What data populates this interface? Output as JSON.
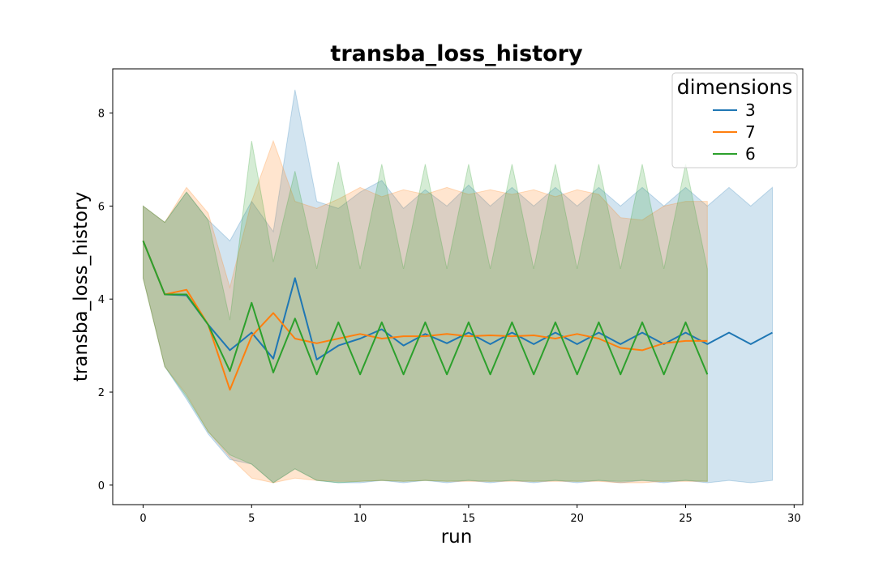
{
  "chart_data": {
    "type": "line",
    "title": "transba_loss_history",
    "xlabel": "run",
    "ylabel": "transba_loss_history",
    "xlim": [
      -1.4,
      30.4
    ],
    "ylim": [
      -0.42,
      8.95
    ],
    "xticks": [
      0,
      5,
      10,
      15,
      20,
      25,
      30
    ],
    "yticks": [
      0,
      2,
      4,
      6,
      8
    ],
    "grid": false,
    "legend": {
      "title": "dimensions",
      "placement": "top-right"
    },
    "series": [
      {
        "name": "3",
        "color": "#1f77b4",
        "x": [
          0,
          1,
          2,
          3,
          4,
          5,
          6,
          7,
          8,
          9,
          10,
          11,
          12,
          13,
          14,
          15,
          16,
          17,
          18,
          19,
          20,
          21,
          22,
          23,
          24,
          25,
          26,
          27,
          28,
          29
        ],
        "y": [
          5.25,
          4.1,
          4.08,
          3.45,
          2.9,
          3.28,
          2.72,
          4.45,
          2.7,
          3.0,
          3.15,
          3.35,
          3.0,
          3.25,
          3.05,
          3.28,
          3.03,
          3.28,
          3.03,
          3.28,
          3.03,
          3.28,
          3.03,
          3.28,
          3.03,
          3.28,
          3.03,
          3.28,
          3.03,
          3.28
        ],
        "upper": [
          6.0,
          5.65,
          6.3,
          5.7,
          5.25,
          6.1,
          5.45,
          8.5,
          6.1,
          5.95,
          6.3,
          6.55,
          5.95,
          6.35,
          6.0,
          6.45,
          6.0,
          6.4,
          6.0,
          6.4,
          6.0,
          6.4,
          6.0,
          6.4,
          6.0,
          6.4,
          6.0,
          6.4,
          6.0,
          6.4
        ],
        "lower": [
          4.45,
          2.55,
          1.85,
          1.1,
          0.55,
          0.45,
          0.05,
          0.35,
          0.1,
          0.05,
          0.05,
          0.1,
          0.05,
          0.1,
          0.05,
          0.1,
          0.05,
          0.1,
          0.05,
          0.1,
          0.05,
          0.1,
          0.05,
          0.1,
          0.05,
          0.1,
          0.05,
          0.1,
          0.05,
          0.1
        ]
      },
      {
        "name": "7",
        "color": "#ff7f0e",
        "x": [
          0,
          1,
          2,
          3,
          4,
          5,
          6,
          7,
          8,
          9,
          10,
          11,
          12,
          13,
          14,
          15,
          16,
          17,
          18,
          19,
          20,
          21,
          22,
          23,
          24,
          25,
          26
        ],
        "y": [
          5.25,
          4.1,
          4.2,
          3.45,
          2.05,
          3.2,
          3.7,
          3.15,
          3.05,
          3.15,
          3.25,
          3.15,
          3.2,
          3.2,
          3.25,
          3.2,
          3.22,
          3.2,
          3.22,
          3.15,
          3.25,
          3.15,
          2.95,
          2.9,
          3.05,
          3.1,
          3.1
        ],
        "upper": [
          6.0,
          5.65,
          6.4,
          5.85,
          4.25,
          6.1,
          7.4,
          6.1,
          5.95,
          6.15,
          6.4,
          6.2,
          6.35,
          6.25,
          6.4,
          6.25,
          6.35,
          6.25,
          6.35,
          6.2,
          6.35,
          6.25,
          5.75,
          5.7,
          6.0,
          6.1,
          6.1
        ],
        "lower": [
          4.45,
          2.55,
          1.95,
          1.15,
          0.6,
          0.15,
          0.05,
          0.15,
          0.1,
          0.08,
          0.08,
          0.1,
          0.08,
          0.1,
          0.08,
          0.08,
          0.08,
          0.08,
          0.08,
          0.08,
          0.08,
          0.08,
          0.05,
          0.05,
          0.08,
          0.08,
          0.08
        ]
      },
      {
        "name": "6",
        "color": "#2ca02c",
        "x": [
          0,
          1,
          2,
          3,
          4,
          5,
          6,
          7,
          8,
          9,
          10,
          11,
          12,
          13,
          14,
          15,
          16,
          17,
          18,
          19,
          20,
          21,
          22,
          23,
          24,
          25,
          26
        ],
        "y": [
          5.25,
          4.1,
          4.1,
          3.45,
          2.45,
          3.92,
          2.42,
          3.58,
          2.38,
          3.5,
          2.38,
          3.5,
          2.38,
          3.5,
          2.38,
          3.5,
          2.38,
          3.5,
          2.38,
          3.5,
          2.38,
          3.5,
          2.38,
          3.5,
          2.38,
          3.5,
          2.38
        ],
        "upper": [
          6.0,
          5.65,
          6.3,
          5.7,
          3.55,
          7.4,
          4.8,
          6.75,
          4.65,
          6.95,
          4.65,
          6.9,
          4.65,
          6.9,
          4.65,
          6.9,
          4.65,
          6.9,
          4.65,
          6.9,
          4.65,
          6.9,
          4.65,
          6.9,
          4.65,
          6.9,
          4.65
        ],
        "lower": [
          4.45,
          2.55,
          1.9,
          1.15,
          0.65,
          0.45,
          0.05,
          0.35,
          0.1,
          0.05,
          0.08,
          0.1,
          0.08,
          0.1,
          0.08,
          0.1,
          0.08,
          0.1,
          0.08,
          0.1,
          0.08,
          0.1,
          0.08,
          0.1,
          0.08,
          0.1,
          0.08
        ]
      }
    ]
  }
}
